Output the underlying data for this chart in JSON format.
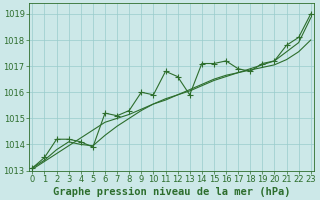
{
  "x": [
    0,
    1,
    2,
    3,
    4,
    5,
    6,
    7,
    8,
    9,
    10,
    11,
    12,
    13,
    14,
    15,
    16,
    17,
    18,
    19,
    20,
    21,
    22,
    23
  ],
  "line_jagged": [
    1013.1,
    1013.5,
    1014.2,
    1014.2,
    1014.1,
    1013.9,
    1015.2,
    1015.1,
    1015.3,
    1016.0,
    1015.9,
    1016.8,
    1016.6,
    1015.9,
    1017.1,
    1017.1,
    1017.2,
    1016.9,
    1016.8,
    1017.1,
    1017.2,
    1017.8,
    1018.1,
    1019.0
  ],
  "line_smooth": [
    1013.05,
    1013.35,
    1013.65,
    1013.95,
    1014.25,
    1014.55,
    1014.85,
    1015.0,
    1015.15,
    1015.35,
    1015.55,
    1015.75,
    1015.9,
    1016.05,
    1016.25,
    1016.45,
    1016.6,
    1016.75,
    1016.9,
    1017.05,
    1017.2,
    1017.55,
    1017.9,
    1018.85
  ],
  "line_lower": [
    1013.1,
    1013.4,
    1013.8,
    1014.1,
    1014.0,
    1013.95,
    1014.35,
    1014.7,
    1015.0,
    1015.3,
    1015.55,
    1015.7,
    1015.9,
    1016.1,
    1016.3,
    1016.5,
    1016.65,
    1016.75,
    1016.85,
    1016.95,
    1017.05,
    1017.25,
    1017.55,
    1018.0
  ],
  "bg_color": "#cce8e8",
  "grid_color": "#99cccc",
  "line_color": "#2d6e2d",
  "marker_color": "#2d6e2d",
  "ylim": [
    1013.0,
    1019.4
  ],
  "yticks": [
    1013,
    1014,
    1015,
    1016,
    1017,
    1018,
    1019
  ],
  "xlim": [
    -0.3,
    23.3
  ],
  "xlabel": "Graphe pression niveau de la mer (hPa)",
  "xlabel_color": "#2d6e2d",
  "xlabel_fontsize": 7.5,
  "tick_color": "#2d6e2d",
  "tick_fontsize": 6,
  "fig_bg": "#cce8e8",
  "figw": 3.2,
  "figh": 2.0,
  "dpi": 100
}
